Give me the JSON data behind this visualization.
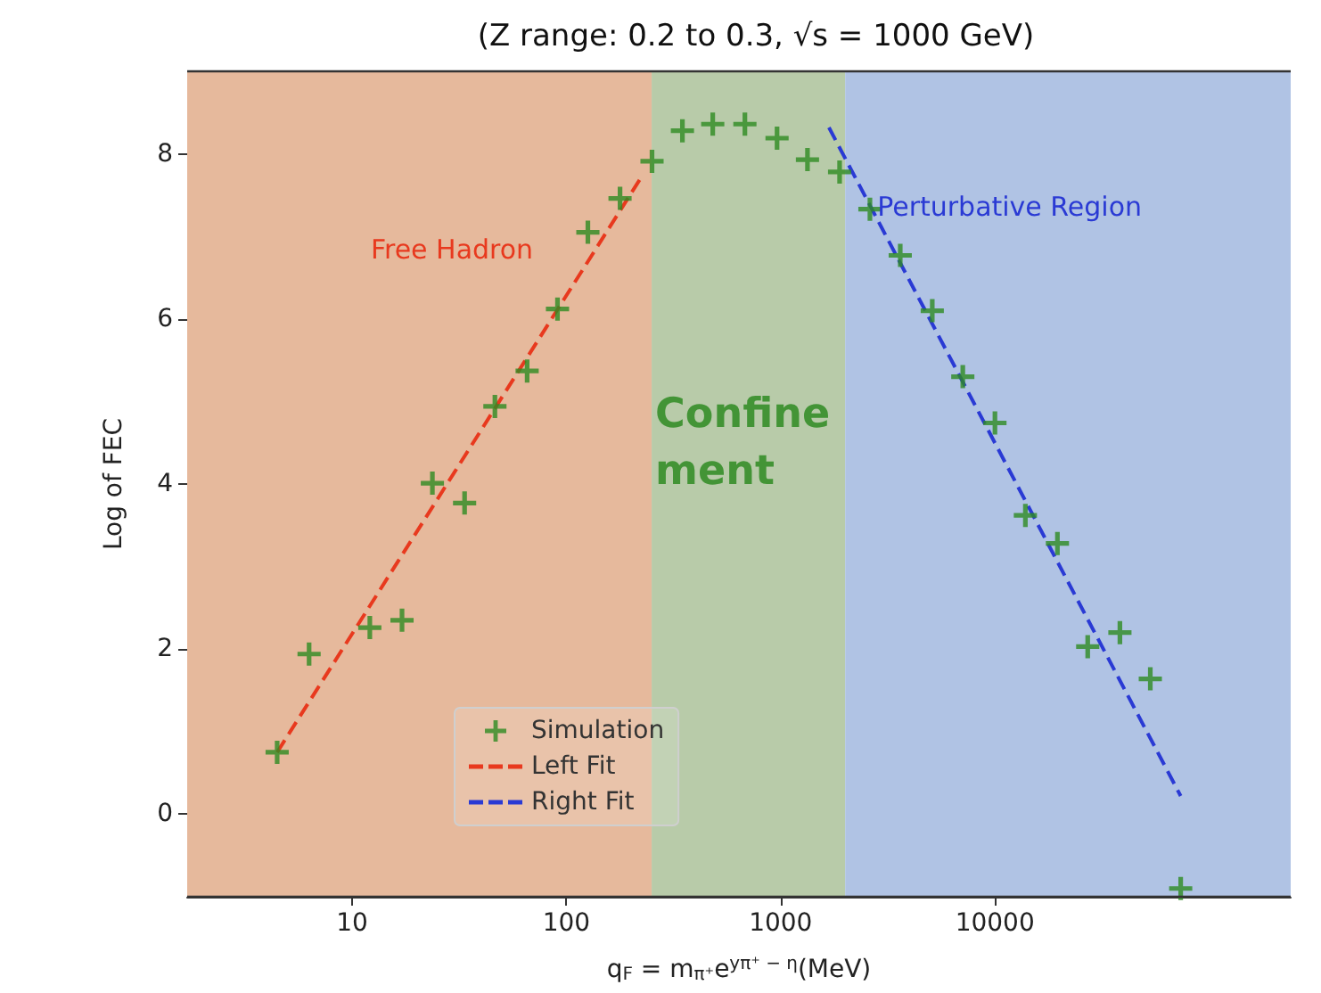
{
  "chart_data": {
    "type": "scatter",
    "title": "(Z range: 0.2 to 0.3, √s = 1000 GeV)",
    "xlabel": "q$_{F}$ = m$_{π⁺}$e$^{yπ⁺ − η}$(MeV)",
    "ylabel": "Log of FEC",
    "log": "x",
    "xlim": [
      1.7,
      240000
    ],
    "ylim": [
      -1,
      9
    ],
    "xticks": [
      10,
      100,
      1000,
      10000
    ],
    "yticks": [
      0,
      2,
      4,
      6,
      8
    ],
    "legend": "bottom",
    "marker": "cross",
    "series": [
      {
        "name": "Simulation",
        "color": "#2e8b22",
        "x": [
          4.47,
          6.3,
          12.1,
          17.1,
          23.7,
          33.5,
          46.4,
          65.6,
          90.9,
          126,
          178,
          251,
          348,
          482,
          681,
          962,
          1334,
          1884,
          2610,
          3615,
          5100,
          7080,
          10000,
          13870,
          19570,
          27100,
          38300,
          53100,
          73600
        ],
        "values": [
          0.75,
          1.94,
          2.26,
          2.35,
          4.01,
          3.77,
          4.94,
          5.37,
          6.12,
          7.05,
          7.46,
          7.91,
          8.28,
          8.36,
          8.36,
          8.19,
          7.93,
          7.78,
          7.33,
          6.77,
          6.1,
          5.3,
          4.74,
          3.62,
          3.28,
          2.03,
          2.2,
          1.64,
          -0.9
        ]
      },
      {
        "name": "Left Fit",
        "type": "line",
        "line_style": "dashed",
        "marker": "none",
        "color": "#e8391e",
        "x": [
          4.47,
          224
        ],
        "values": [
          0.75,
          7.72
        ]
      },
      {
        "name": "Right Fit",
        "type": "line",
        "line_style": "dashed",
        "marker": "none",
        "color": "#2a3ad4",
        "x": [
          1680,
          73600
        ],
        "values": [
          8.32,
          0.22
        ]
      }
    ],
    "bands": [
      {
        "axis": "x",
        "from": 1.7,
        "to": 250,
        "color": "#e6b99c",
        "label": "Free Hadron"
      },
      {
        "axis": "x",
        "from": 250,
        "to": 2000,
        "color": "#b8cba9",
        "label": "Confine\nment"
      },
      {
        "axis": "x",
        "from": 2000,
        "to": 240000,
        "color": "#b0c3e4",
        "label": "Perturbative Region"
      }
    ]
  }
}
